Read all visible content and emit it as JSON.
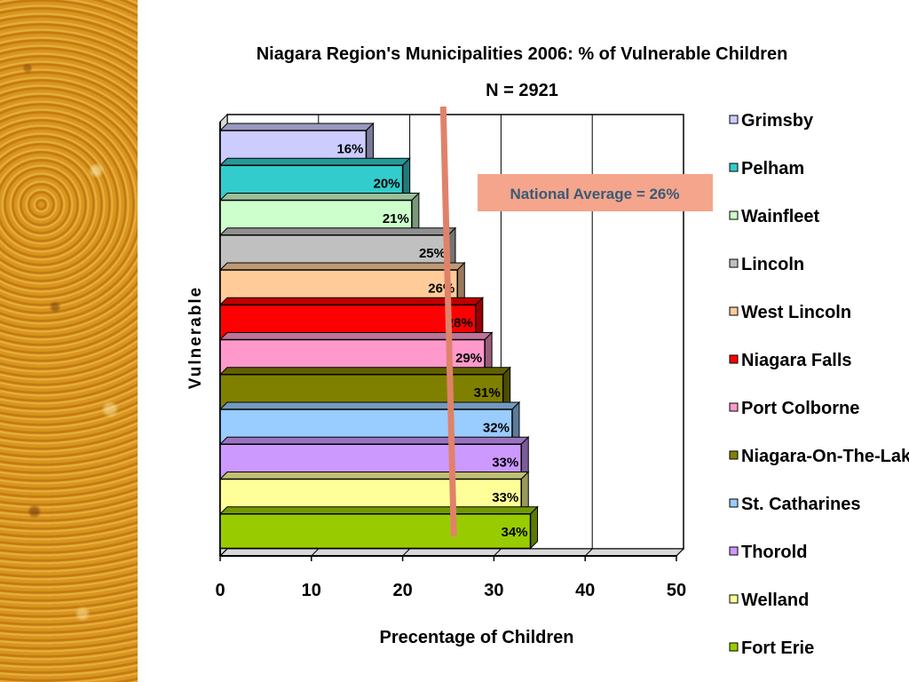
{
  "chart_data": {
    "type": "bar",
    "orientation": "horizontal",
    "title": "Niagara Region's Municipalities 2006: % of Vulnerable Children",
    "subtitle": "N = 2921",
    "xlabel": "Precentage of Children",
    "ylabel": "Vulnerable",
    "xlim": [
      0,
      50
    ],
    "xticks": [
      "0",
      "10",
      "20",
      "30",
      "40",
      "50"
    ],
    "grid": true,
    "legend_position": "right",
    "categories": [
      "Grimsby",
      "Pelham",
      "Wainfleet",
      "Lincoln",
      "West Lincoln",
      "Niagara Falls",
      "Port Colborne",
      "Niagara-On-The-Lake",
      "St. Catharines",
      "Thorold",
      "Welland",
      "Fort Erie"
    ],
    "values": [
      16,
      20,
      21,
      25,
      26,
      28,
      29,
      31,
      32,
      33,
      33,
      34
    ],
    "data_labels": [
      "16%",
      "20%",
      "21%",
      "25%",
      "26%",
      "28%",
      "29%",
      "31%",
      "32%",
      "33%",
      "33%",
      "34%"
    ],
    "colors": [
      "#ccccff",
      "#33cccc",
      "#ccffcc",
      "#c0c0c0",
      "#ffcc99",
      "#ff0000",
      "#ff99cc",
      "#808000",
      "#99ccff",
      "#cc99ff",
      "#ffff99",
      "#99cc00"
    ],
    "annotation": {
      "text": "National Average = 26%",
      "value": 26,
      "line_color": "#e0826a",
      "box_color": "#f4a58b",
      "text_color": "#3a5a78"
    }
  }
}
